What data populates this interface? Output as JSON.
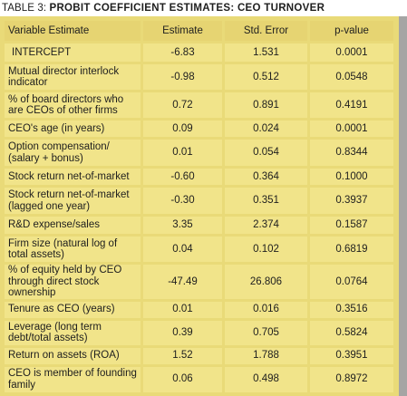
{
  "table_caption": {
    "label": "TABLE 3:",
    "title": "PROBIT COEFFICIENT ESTIMATES: CEO TURNOVER"
  },
  "columns": [
    "Variable Estimate",
    "Estimate",
    "Std. Error",
    "p-value"
  ],
  "rows": [
    {
      "variable": "INTERCEPT",
      "estimate": "-6.83",
      "std_error": "1.531",
      "p_value": "0.0001"
    },
    {
      "variable": "Mutual director interlock indicator",
      "estimate": "-0.98",
      "std_error": "0.512",
      "p_value": "0.0548"
    },
    {
      "variable": "% of board directors who are CEOs of other firms",
      "estimate": "0.72",
      "std_error": "0.891",
      "p_value": "0.4191"
    },
    {
      "variable": "CEO's age (in years)",
      "estimate": "0.09",
      "std_error": "0.024",
      "p_value": "0.0001"
    },
    {
      "variable": "Option compensation/ (salary + bonus)",
      "estimate": "0.01",
      "std_error": "0.054",
      "p_value": "0.8344"
    },
    {
      "variable": "Stock return net-of-market",
      "estimate": "-0.60",
      "std_error": "0.364",
      "p_value": "0.1000"
    },
    {
      "variable": "Stock return net-of-market (lagged one year)",
      "estimate": "-0.30",
      "std_error": "0.351",
      "p_value": "0.3937"
    },
    {
      "variable": "R&D expense/sales",
      "estimate": "3.35",
      "std_error": "2.374",
      "p_value": "0.1587"
    },
    {
      "variable": "Firm size (natural log of total assets)",
      "estimate": "0.04",
      "std_error": "0.102",
      "p_value": "0.6819"
    },
    {
      "variable": "% of equity held by CEO through direct stock ownership",
      "estimate": "-47.49",
      "std_error": "26.806",
      "p_value": "0.0764"
    },
    {
      "variable": "Tenure as CEO (years)",
      "estimate": "0.01",
      "std_error": "0.016",
      "p_value": "0.3516"
    },
    {
      "variable": "Leverage (long term debt/total assets)",
      "estimate": "0.39",
      "std_error": "0.705",
      "p_value": "0.5824"
    },
    {
      "variable": "Return on assets (ROA)",
      "estimate": "1.52",
      "std_error": "1.788",
      "p_value": "0.3951"
    },
    {
      "variable": "CEO is member of founding family",
      "estimate": "0.06",
      "std_error": "0.498",
      "p_value": "0.8972"
    }
  ],
  "colors": {
    "cell": "#f1e48a",
    "header_cell": "#e6d472",
    "grid": "#e9da78",
    "right_band": "#a5a5a4",
    "text": "#1e1e1e"
  }
}
